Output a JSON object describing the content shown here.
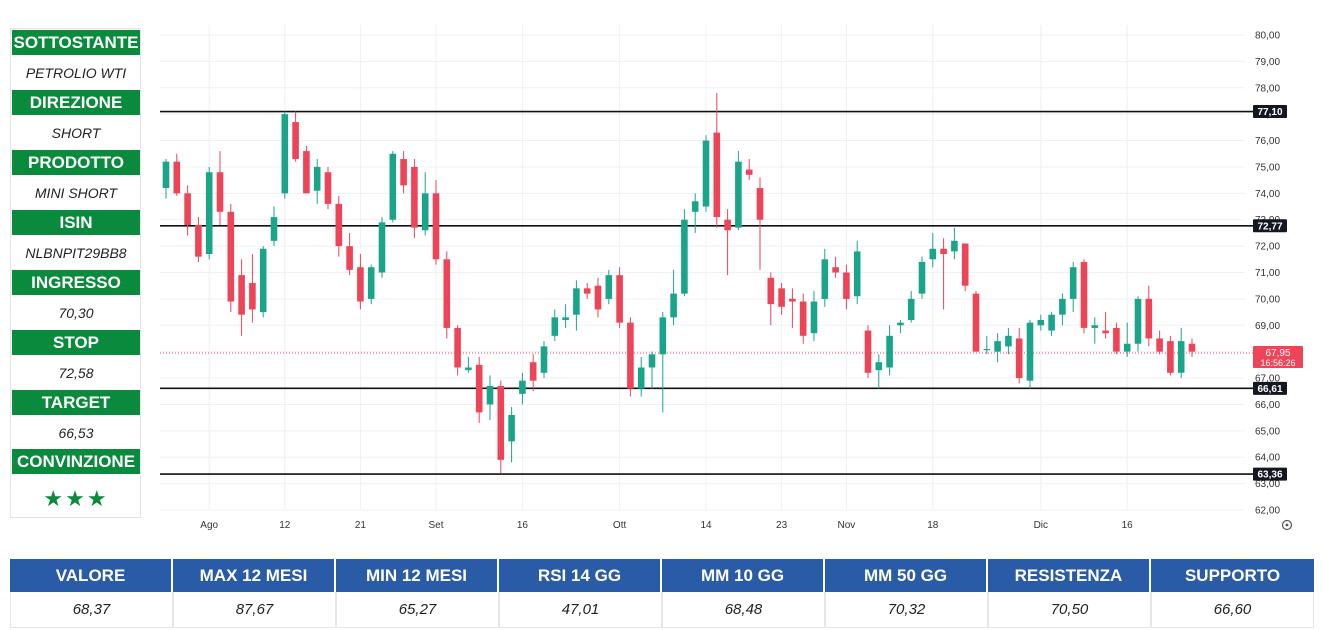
{
  "colors": {
    "header_green": "#0a8a3c",
    "header_blue": "#2a5ba6",
    "star_green": "#0a8a3c",
    "bull": "#1aa58b",
    "bear": "#ee4458",
    "level_line": "#111111",
    "current_price": "#ee4458"
  },
  "panel": {
    "items": [
      {
        "label": "SOTTOSTANTE",
        "value": "PETROLIO WTI"
      },
      {
        "label": "DIREZIONE",
        "value": "SHORT"
      },
      {
        "label": "PRODOTTO",
        "value": "MINI SHORT"
      },
      {
        "label": "ISIN",
        "value": "NLBNPIT29BB8"
      },
      {
        "label": "INGRESSO",
        "value": "70,30"
      },
      {
        "label": "STOP",
        "value": "72,58"
      },
      {
        "label": "TARGET",
        "value": "66,53"
      }
    ],
    "conviction_label": "CONVINZIONE",
    "stars": "★★★"
  },
  "table": {
    "headers": [
      "VALORE",
      "MAX 12 MESI",
      "MIN 12 MESI",
      "RSI 14 GG",
      "MM 10 GG",
      "MM 50 GG",
      "RESISTENZA",
      "SUPPORTO"
    ],
    "values": [
      "68,37",
      "87,67",
      "65,27",
      "47,01",
      "68,48",
      "70,32",
      "70,50",
      "66,60"
    ]
  },
  "chart_data": {
    "type": "candlestick",
    "title": "",
    "xlabel": "",
    "ylabel": "",
    "ylim": [
      62.0,
      80.0
    ],
    "y_ticks": [
      "62,00",
      "63,00",
      "64,00",
      "65,00",
      "66,00",
      "67,00",
      "68,00",
      "69,00",
      "70,00",
      "71,00",
      "72,00",
      "73,00",
      "74,00",
      "75,00",
      "76,00",
      "77,00",
      "78,00",
      "79,00",
      "80,00"
    ],
    "x_ticks": [
      {
        "label": "Ago",
        "index": 4
      },
      {
        "label": "12",
        "index": 11
      },
      {
        "label": "21",
        "index": 18
      },
      {
        "label": "Set",
        "index": 25
      },
      {
        "label": "16",
        "index": 33
      },
      {
        "label": "Ott",
        "index": 42
      },
      {
        "label": "14",
        "index": 50
      },
      {
        "label": "23",
        "index": 57
      },
      {
        "label": "Nov",
        "index": 63
      },
      {
        "label": "18",
        "index": 71
      },
      {
        "label": "Dic",
        "index": 81
      },
      {
        "label": "16",
        "index": 89
      }
    ],
    "levels": [
      {
        "value": 77.1,
        "label": "77,10"
      },
      {
        "value": 72.77,
        "label": "72,77"
      },
      {
        "value": 66.61,
        "label": "66,61"
      },
      {
        "value": 63.36,
        "label": "63,36"
      }
    ],
    "current_price": {
      "value": 67.95,
      "label": "67,95",
      "time": "16:56:26"
    },
    "settings_icon": "settings-icon",
    "candles": [
      {
        "o": 74.2,
        "h": 75.3,
        "l": 73.8,
        "c": 75.2
      },
      {
        "o": 75.2,
        "h": 75.5,
        "l": 73.9,
        "c": 74.0
      },
      {
        "o": 74.0,
        "h": 74.3,
        "l": 72.4,
        "c": 72.8
      },
      {
        "o": 72.8,
        "h": 73.1,
        "l": 71.4,
        "c": 71.6
      },
      {
        "o": 71.7,
        "h": 75.0,
        "l": 71.5,
        "c": 74.8
      },
      {
        "o": 74.8,
        "h": 75.6,
        "l": 72.8,
        "c": 73.3
      },
      {
        "o": 73.3,
        "h": 73.6,
        "l": 69.5,
        "c": 69.9
      },
      {
        "o": 70.9,
        "h": 71.5,
        "l": 68.6,
        "c": 69.4
      },
      {
        "o": 70.6,
        "h": 71.7,
        "l": 69.1,
        "c": 69.6
      },
      {
        "o": 69.5,
        "h": 72.0,
        "l": 69.3,
        "c": 71.9
      },
      {
        "o": 72.2,
        "h": 73.5,
        "l": 72.0,
        "c": 73.1
      },
      {
        "o": 74.0,
        "h": 77.1,
        "l": 73.8,
        "c": 77.0
      },
      {
        "o": 76.7,
        "h": 77.1,
        "l": 75.2,
        "c": 75.3
      },
      {
        "o": 75.6,
        "h": 75.8,
        "l": 74.0,
        "c": 74.0
      },
      {
        "o": 74.1,
        "h": 75.3,
        "l": 73.6,
        "c": 75.0
      },
      {
        "o": 74.8,
        "h": 75.0,
        "l": 73.4,
        "c": 73.6
      },
      {
        "o": 73.6,
        "h": 73.9,
        "l": 71.6,
        "c": 72.0
      },
      {
        "o": 72.0,
        "h": 72.5,
        "l": 70.9,
        "c": 71.1
      },
      {
        "o": 71.2,
        "h": 71.7,
        "l": 69.6,
        "c": 69.9
      },
      {
        "o": 70.0,
        "h": 71.3,
        "l": 69.8,
        "c": 71.2
      },
      {
        "o": 71.0,
        "h": 73.1,
        "l": 70.8,
        "c": 72.9
      },
      {
        "o": 73.0,
        "h": 75.6,
        "l": 72.9,
        "c": 75.5
      },
      {
        "o": 75.3,
        "h": 75.6,
        "l": 74.0,
        "c": 74.3
      },
      {
        "o": 75.0,
        "h": 75.3,
        "l": 72.3,
        "c": 72.7
      },
      {
        "o": 72.6,
        "h": 74.8,
        "l": 72.4,
        "c": 74.0
      },
      {
        "o": 74.0,
        "h": 74.5,
        "l": 71.3,
        "c": 71.5
      },
      {
        "o": 71.5,
        "h": 71.8,
        "l": 68.5,
        "c": 68.9
      },
      {
        "o": 68.9,
        "h": 69.0,
        "l": 67.1,
        "c": 67.4
      },
      {
        "o": 67.3,
        "h": 67.8,
        "l": 67.2,
        "c": 67.4
      },
      {
        "o": 67.5,
        "h": 67.8,
        "l": 65.3,
        "c": 65.7
      },
      {
        "o": 66.0,
        "h": 67.1,
        "l": 65.4,
        "c": 66.7
      },
      {
        "o": 66.7,
        "h": 66.9,
        "l": 63.4,
        "c": 63.9
      },
      {
        "o": 64.6,
        "h": 65.9,
        "l": 63.8,
        "c": 65.6
      },
      {
        "o": 66.4,
        "h": 67.2,
        "l": 66.0,
        "c": 66.9
      },
      {
        "o": 67.6,
        "h": 67.9,
        "l": 66.5,
        "c": 66.9
      },
      {
        "o": 67.2,
        "h": 68.4,
        "l": 67.0,
        "c": 68.2
      },
      {
        "o": 68.6,
        "h": 69.6,
        "l": 68.4,
        "c": 69.3
      },
      {
        "o": 69.2,
        "h": 69.8,
        "l": 68.9,
        "c": 69.3
      },
      {
        "o": 69.4,
        "h": 70.7,
        "l": 68.8,
        "c": 70.4
      },
      {
        "o": 70.4,
        "h": 70.6,
        "l": 70.0,
        "c": 70.2
      },
      {
        "o": 70.5,
        "h": 70.8,
        "l": 69.3,
        "c": 69.6
      },
      {
        "o": 70.0,
        "h": 71.1,
        "l": 69.8,
        "c": 70.9
      },
      {
        "o": 70.9,
        "h": 71.2,
        "l": 68.9,
        "c": 69.1
      },
      {
        "o": 69.1,
        "h": 69.3,
        "l": 66.3,
        "c": 66.6
      },
      {
        "o": 66.6,
        "h": 67.8,
        "l": 66.3,
        "c": 67.4
      },
      {
        "o": 67.4,
        "h": 68.0,
        "l": 66.6,
        "c": 67.9
      },
      {
        "o": 67.9,
        "h": 69.5,
        "l": 65.7,
        "c": 69.3
      },
      {
        "o": 69.3,
        "h": 71.1,
        "l": 69.0,
        "c": 70.2
      },
      {
        "o": 70.2,
        "h": 73.4,
        "l": 70.1,
        "c": 73.0
      },
      {
        "o": 73.3,
        "h": 74.0,
        "l": 72.5,
        "c": 73.7
      },
      {
        "o": 73.5,
        "h": 76.2,
        "l": 73.3,
        "c": 76.0
      },
      {
        "o": 76.3,
        "h": 77.8,
        "l": 72.7,
        "c": 73.1
      },
      {
        "o": 73.0,
        "h": 73.4,
        "l": 70.9,
        "c": 72.6
      },
      {
        "o": 72.7,
        "h": 75.6,
        "l": 72.6,
        "c": 75.2
      },
      {
        "o": 74.9,
        "h": 75.3,
        "l": 74.5,
        "c": 74.7
      },
      {
        "o": 74.2,
        "h": 74.6,
        "l": 71.1,
        "c": 73.0
      },
      {
        "o": 70.8,
        "h": 71.0,
        "l": 69.0,
        "c": 69.8
      },
      {
        "o": 70.4,
        "h": 70.6,
        "l": 69.4,
        "c": 69.7
      },
      {
        "o": 70.0,
        "h": 70.4,
        "l": 68.9,
        "c": 69.9
      },
      {
        "o": 69.9,
        "h": 70.2,
        "l": 68.3,
        "c": 68.6
      },
      {
        "o": 68.7,
        "h": 70.3,
        "l": 68.4,
        "c": 69.9
      },
      {
        "o": 70.0,
        "h": 71.9,
        "l": 69.7,
        "c": 71.5
      },
      {
        "o": 71.2,
        "h": 71.6,
        "l": 70.8,
        "c": 71.0
      },
      {
        "o": 71.0,
        "h": 71.3,
        "l": 69.6,
        "c": 70.0
      },
      {
        "o": 70.1,
        "h": 72.2,
        "l": 69.8,
        "c": 71.8
      },
      {
        "o": 68.8,
        "h": 69.0,
        "l": 67.0,
        "c": 67.2
      },
      {
        "o": 67.3,
        "h": 67.9,
        "l": 66.6,
        "c": 67.6
      },
      {
        "o": 67.4,
        "h": 69.0,
        "l": 67.1,
        "c": 68.6
      },
      {
        "o": 69.0,
        "h": 69.2,
        "l": 68.7,
        "c": 69.1
      },
      {
        "o": 69.2,
        "h": 70.3,
        "l": 69.1,
        "c": 70.0
      },
      {
        "o": 70.2,
        "h": 71.6,
        "l": 70.0,
        "c": 71.4
      },
      {
        "o": 71.5,
        "h": 72.5,
        "l": 71.2,
        "c": 71.9
      },
      {
        "o": 71.9,
        "h": 72.3,
        "l": 69.6,
        "c": 71.7
      },
      {
        "o": 71.8,
        "h": 72.7,
        "l": 71.5,
        "c": 72.2
      },
      {
        "o": 72.1,
        "h": 72.1,
        "l": 70.3,
        "c": 70.5
      },
      {
        "o": 70.2,
        "h": 70.3,
        "l": 68.0,
        "c": 68.0
      },
      {
        "o": 68.1,
        "h": 68.6,
        "l": 67.9,
        "c": 68.1
      },
      {
        "o": 68.0,
        "h": 68.7,
        "l": 67.6,
        "c": 68.4
      },
      {
        "o": 68.2,
        "h": 68.9,
        "l": 67.9,
        "c": 68.6
      },
      {
        "o": 68.5,
        "h": 68.9,
        "l": 66.8,
        "c": 67.0
      },
      {
        "o": 66.9,
        "h": 69.2,
        "l": 66.6,
        "c": 69.1
      },
      {
        "o": 69.0,
        "h": 69.4,
        "l": 68.8,
        "c": 69.2
      },
      {
        "o": 68.8,
        "h": 69.5,
        "l": 68.6,
        "c": 69.4
      },
      {
        "o": 69.4,
        "h": 70.2,
        "l": 69.0,
        "c": 70.0
      },
      {
        "o": 70.0,
        "h": 71.4,
        "l": 69.5,
        "c": 71.2
      },
      {
        "o": 71.4,
        "h": 71.5,
        "l": 68.7,
        "c": 68.9
      },
      {
        "o": 68.9,
        "h": 69.3,
        "l": 68.3,
        "c": 69.0
      },
      {
        "o": 68.8,
        "h": 69.5,
        "l": 68.5,
        "c": 68.7
      },
      {
        "o": 68.9,
        "h": 69.1,
        "l": 67.9,
        "c": 68.0
      },
      {
        "o": 68.0,
        "h": 69.1,
        "l": 67.8,
        "c": 68.3
      },
      {
        "o": 68.3,
        "h": 70.1,
        "l": 68.0,
        "c": 70.0
      },
      {
        "o": 70.0,
        "h": 70.5,
        "l": 68.2,
        "c": 68.5
      },
      {
        "o": 68.5,
        "h": 68.8,
        "l": 67.9,
        "c": 68.0
      },
      {
        "o": 68.4,
        "h": 68.6,
        "l": 67.1,
        "c": 67.2
      },
      {
        "o": 67.2,
        "h": 68.9,
        "l": 67.0,
        "c": 68.4
      },
      {
        "o": 68.3,
        "h": 68.5,
        "l": 67.8,
        "c": 68.0
      }
    ]
  }
}
